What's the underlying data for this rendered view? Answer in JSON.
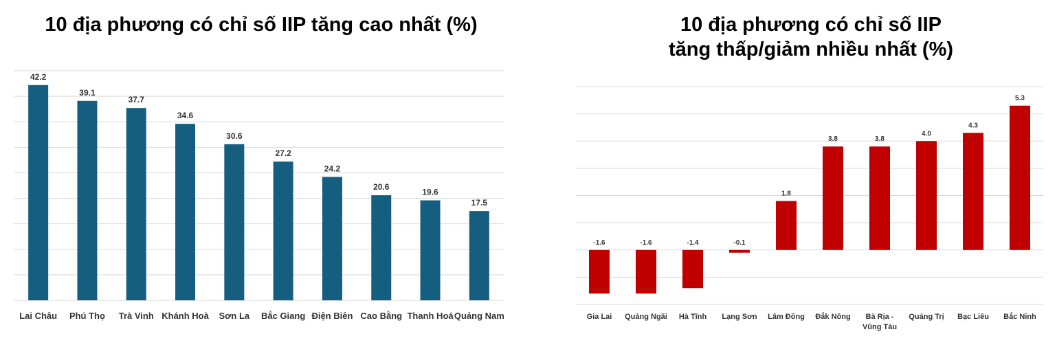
{
  "chart_data": [
    {
      "type": "bar",
      "title": "10 địa phương có chỉ số IIP tăng cao nhất (%)",
      "categories": [
        "Lai Châu",
        "Phú Thọ",
        "Trà Vinh",
        "Khánh Hoà",
        "Sơn La",
        "Bắc Giang",
        "Điện Biên",
        "Cao Bằng",
        "Thanh Hoá",
        "Quảng Nam"
      ],
      "values": [
        42.2,
        39.1,
        37.7,
        34.6,
        30.6,
        27.2,
        24.2,
        20.6,
        19.6,
        17.5
      ],
      "color": "#155e80",
      "ylim": [
        0,
        45
      ],
      "yticks": [
        0,
        5,
        10,
        15,
        20,
        25,
        30,
        35,
        40,
        45
      ],
      "grid": true
    },
    {
      "type": "bar",
      "title": "10 địa phương có chỉ số IIP\ntăng thấp/giảm nhiều nhất (%)",
      "categories": [
        "Gia Lai",
        "Quảng Ngãi",
        "Hà Tĩnh",
        "Lạng Sơn",
        "Lâm Đồng",
        "Đắk Nông",
        "Bà Rịa -\nVũng Tàu",
        "Quảng Trị",
        "Bạc Liêu",
        "Bắc Ninh"
      ],
      "values": [
        -1.6,
        -1.6,
        -1.4,
        -0.1,
        1.8,
        3.8,
        3.8,
        4.0,
        4.3,
        5.3
      ],
      "value_labels": [
        "-1.6",
        "-1.6",
        "-1.4",
        "-0.1",
        "1.8",
        "3.8",
        "3.8",
        "4.0",
        "4.3",
        "5.3"
      ],
      "color": "#c00000",
      "ylim": [
        -2,
        6
      ],
      "yticks": [
        -2,
        -1,
        0,
        1,
        2,
        3,
        4,
        5,
        6
      ],
      "grid": true
    }
  ]
}
